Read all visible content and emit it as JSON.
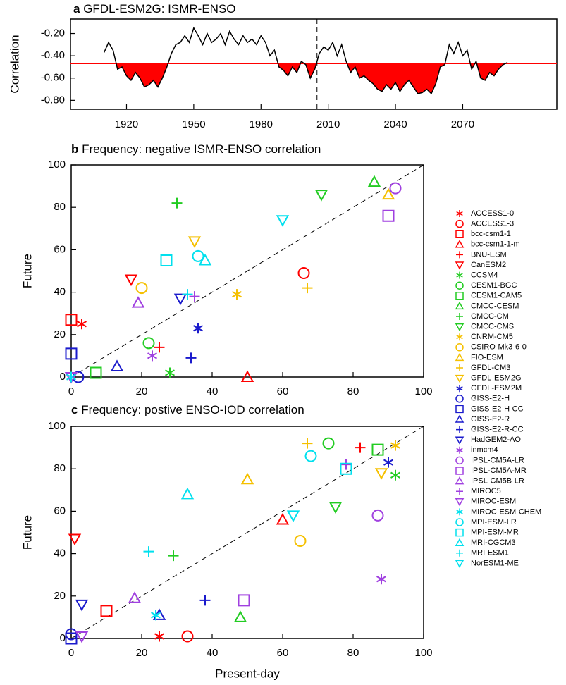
{
  "chart_data": [
    {
      "type": "line",
      "panel_label": "a",
      "title": "GFDL-ESM2G: ISMR-ENSO",
      "ylabel": "Correlation",
      "x": [
        1910,
        1912,
        1914,
        1916,
        1918,
        1920,
        1922,
        1924,
        1926,
        1928,
        1930,
        1932,
        1934,
        1936,
        1938,
        1940,
        1942,
        1944,
        1946,
        1948,
        1950,
        1952,
        1954,
        1956,
        1958,
        1960,
        1962,
        1964,
        1966,
        1968,
        1970,
        1972,
        1974,
        1976,
        1978,
        1980,
        1982,
        1984,
        1986,
        1988,
        1990,
        1992,
        1994,
        1996,
        1998,
        2000,
        2002,
        2004,
        2006,
        2008,
        2010,
        2012,
        2014,
        2016,
        2018,
        2020,
        2022,
        2024,
        2026,
        2028,
        2030,
        2032,
        2034,
        2036,
        2038,
        2040,
        2042,
        2044,
        2046,
        2048,
        2050,
        2052,
        2054,
        2056,
        2058,
        2060,
        2062,
        2064,
        2066,
        2068,
        2070,
        2072,
        2074,
        2076,
        2078,
        2080,
        2082,
        2084,
        2086,
        2088,
        2090
      ],
      "values": [
        -0.37,
        -0.28,
        -0.35,
        -0.52,
        -0.5,
        -0.58,
        -0.62,
        -0.55,
        -0.6,
        -0.68,
        -0.66,
        -0.62,
        -0.68,
        -0.6,
        -0.5,
        -0.38,
        -0.3,
        -0.28,
        -0.22,
        -0.28,
        -0.15,
        -0.22,
        -0.3,
        -0.2,
        -0.28,
        -0.25,
        -0.2,
        -0.3,
        -0.18,
        -0.25,
        -0.3,
        -0.22,
        -0.28,
        -0.25,
        -0.3,
        -0.22,
        -0.28,
        -0.4,
        -0.35,
        -0.5,
        -0.53,
        -0.58,
        -0.5,
        -0.55,
        -0.45,
        -0.48,
        -0.6,
        -0.52,
        -0.38,
        -0.32,
        -0.35,
        -0.28,
        -0.4,
        -0.3,
        -0.45,
        -0.55,
        -0.5,
        -0.6,
        -0.58,
        -0.62,
        -0.65,
        -0.7,
        -0.72,
        -0.66,
        -0.7,
        -0.64,
        -0.72,
        -0.66,
        -0.62,
        -0.68,
        -0.74,
        -0.73,
        -0.7,
        -0.74,
        -0.65,
        -0.5,
        -0.48,
        -0.3,
        -0.38,
        -0.28,
        -0.4,
        -0.35,
        -0.52,
        -0.45,
        -0.6,
        -0.62,
        -0.55,
        -0.58,
        -0.52,
        -0.48,
        -0.46
      ],
      "color": "#000000",
      "fill_color": "#ff0000",
      "threshold": -0.47,
      "threshold_color": "#ff0000",
      "divider_x": 2005,
      "xlim": [
        1895,
        2112
      ],
      "xticks": [
        1920,
        1950,
        1980,
        2010,
        2040,
        2070
      ],
      "ylim": [
        -0.88,
        -0.07
      ],
      "yticks": [
        {
          "value": -0.2,
          "label": "-0.20"
        },
        {
          "value": -0.4,
          "label": "-0.40"
        },
        {
          "value": -0.6,
          "label": "-0.60"
        },
        {
          "value": -0.8,
          "label": "-0.80"
        }
      ]
    },
    {
      "type": "scatter",
      "panel_label": "b",
      "title": "Frequency: negative ISMR-ENSO correlation",
      "ylabel": "Future",
      "xlim": [
        0,
        100
      ],
      "ylim": [
        0,
        100
      ],
      "xticks": [
        0,
        20,
        40,
        60,
        80,
        100
      ],
      "yticks": [
        0,
        20,
        40,
        60,
        80,
        100
      ],
      "diagonal": true,
      "legend": "right",
      "series": [
        {
          "name": "ACCESS1-0",
          "color": "#ff0000",
          "marker": "asterisk",
          "x": [
            3
          ],
          "values": [
            25
          ]
        },
        {
          "name": "ACCESS1-3",
          "color": "#ff0000",
          "marker": "circle",
          "x": [
            66
          ],
          "values": [
            49
          ]
        },
        {
          "name": "bcc-csm1-1",
          "color": "#ff0000",
          "marker": "square",
          "x": [
            0
          ],
          "values": [
            27
          ]
        },
        {
          "name": "bcc-csm1-1-m",
          "color": "#ff0000",
          "marker": "triangle",
          "x": [
            50
          ],
          "values": [
            0
          ]
        },
        {
          "name": "BNU-ESM",
          "color": "#ff0000",
          "marker": "plus",
          "x": [
            25
          ],
          "values": [
            14
          ]
        },
        {
          "name": "CanESM2",
          "color": "#ff0000",
          "marker": "down",
          "x": [
            17
          ],
          "values": [
            46
          ]
        },
        {
          "name": "CCSM4",
          "color": "#22cc22",
          "marker": "asterisk",
          "x": [
            28
          ],
          "values": [
            2
          ]
        },
        {
          "name": "CESM1-BGC",
          "color": "#22cc22",
          "marker": "circle",
          "x": [
            22
          ],
          "values": [
            16
          ]
        },
        {
          "name": "CESM1-CAM5",
          "color": "#22cc22",
          "marker": "square",
          "x": [
            7
          ],
          "values": [
            2
          ]
        },
        {
          "name": "CMCC-CESM",
          "color": "#22cc22",
          "marker": "triangle",
          "x": [
            86
          ],
          "values": [
            92
          ]
        },
        {
          "name": "CMCC-CM",
          "color": "#22cc22",
          "marker": "plus",
          "x": [
            30
          ],
          "values": [
            82
          ]
        },
        {
          "name": "CMCC-CMS",
          "color": "#22cc22",
          "marker": "down",
          "x": [
            71
          ],
          "values": [
            86
          ]
        },
        {
          "name": "CNRM-CM5",
          "color": "#f5c000",
          "marker": "asterisk",
          "x": [
            47
          ],
          "values": [
            39
          ]
        },
        {
          "name": "CSIRO-Mk3-6-0",
          "color": "#f5c000",
          "marker": "circle",
          "x": [
            20
          ],
          "values": [
            42
          ]
        },
        {
          "name": "FIO-ESM",
          "color": "#f5c000",
          "marker": "triangle",
          "x": [
            90
          ],
          "values": [
            86
          ]
        },
        {
          "name": "GFDL-CM3",
          "color": "#f5c000",
          "marker": "plus",
          "x": [
            67
          ],
          "values": [
            42
          ]
        },
        {
          "name": "GFDL-ESM2G",
          "color": "#f5c000",
          "marker": "down",
          "x": [
            35
          ],
          "values": [
            64
          ]
        },
        {
          "name": "GFDL-ESM2M",
          "color": "#1a1acc",
          "marker": "asterisk",
          "x": [
            36
          ],
          "values": [
            23
          ]
        },
        {
          "name": "GISS-E2-H",
          "color": "#1a1acc",
          "marker": "circle",
          "x": [
            2
          ],
          "values": [
            0
          ]
        },
        {
          "name": "GISS-E2-H-CC",
          "color": "#1a1acc",
          "marker": "square",
          "x": [
            0
          ],
          "values": [
            11
          ]
        },
        {
          "name": "GISS-E2-R",
          "color": "#1a1acc",
          "marker": "triangle",
          "x": [
            13
          ],
          "values": [
            5
          ]
        },
        {
          "name": "GISS-E2-R-CC",
          "color": "#1a1acc",
          "marker": "plus",
          "x": [
            34
          ],
          "values": [
            9
          ]
        },
        {
          "name": "HadGEM2-AO",
          "color": "#1a1acc",
          "marker": "down",
          "x": [
            31
          ],
          "values": [
            37
          ]
        },
        {
          "name": "inmcm4",
          "color": "#a040e0",
          "marker": "asterisk",
          "x": [
            23
          ],
          "values": [
            10
          ]
        },
        {
          "name": "IPSL-CM5A-LR",
          "color": "#a040e0",
          "marker": "circle",
          "x": [
            92
          ],
          "values": [
            89
          ]
        },
        {
          "name": "IPSL-CM5A-MR",
          "color": "#a040e0",
          "marker": "square",
          "x": [
            90
          ],
          "values": [
            76
          ]
        },
        {
          "name": "IPSL-CM5B-LR",
          "color": "#a040e0",
          "marker": "triangle",
          "x": [
            19
          ],
          "values": [
            35
          ]
        },
        {
          "name": "MIROC5",
          "color": "#a040e0",
          "marker": "plus",
          "x": [
            35
          ],
          "values": [
            38
          ]
        },
        {
          "name": "MIROC-ESM",
          "color": "#a040e0",
          "marker": "down",
          "x": [
            0
          ],
          "values": [
            0
          ]
        },
        {
          "name": "MIROC-ESM-CHEM",
          "color": "#00e0ee",
          "marker": "asterisk",
          "x": [
            0
          ],
          "values": [
            0
          ]
        },
        {
          "name": "MPI-ESM-LR",
          "color": "#00e0ee",
          "marker": "circle",
          "x": [
            36
          ],
          "values": [
            57
          ]
        },
        {
          "name": "MPI-ESM-MR",
          "color": "#00e0ee",
          "marker": "square",
          "x": [
            27
          ],
          "values": [
            55
          ]
        },
        {
          "name": "MRI-CGCM3",
          "color": "#00e0ee",
          "marker": "triangle",
          "x": [
            38
          ],
          "values": [
            55
          ]
        },
        {
          "name": "MRI-ESM1",
          "color": "#00e0ee",
          "marker": "plus",
          "x": [
            33
          ],
          "values": [
            39
          ]
        },
        {
          "name": "NorESM1-ME",
          "color": "#00e0ee",
          "marker": "down",
          "x": [
            60
          ],
          "values": [
            74
          ]
        }
      ]
    },
    {
      "type": "scatter",
      "panel_label": "c",
      "title": "Frequency: postive ENSO-IOD correlation",
      "xlabel": "Present-day",
      "ylabel": "Future",
      "xlim": [
        0,
        100
      ],
      "ylim": [
        0,
        100
      ],
      "xticks": [
        0,
        20,
        40,
        60,
        80,
        100
      ],
      "yticks": [
        0,
        20,
        40,
        60,
        80,
        100
      ],
      "diagonal": true,
      "series": [
        {
          "x": [
            25
          ],
          "values": [
            1
          ]
        },
        {
          "x": [
            33
          ],
          "values": [
            1
          ]
        },
        {
          "x": [
            10
          ],
          "values": [
            13
          ]
        },
        {
          "x": [
            60
          ],
          "values": [
            56
          ]
        },
        {
          "x": [
            82
          ],
          "values": [
            90
          ]
        },
        {
          "x": [
            1
          ],
          "values": [
            47
          ]
        },
        {
          "x": [
            92
          ],
          "values": [
            77
          ]
        },
        {
          "x": [
            73
          ],
          "values": [
            92
          ]
        },
        {
          "x": [
            87
          ],
          "values": [
            89
          ]
        },
        {
          "x": [
            48
          ],
          "values": [
            10
          ]
        },
        {
          "x": [
            29
          ],
          "values": [
            39
          ]
        },
        {
          "x": [
            75
          ],
          "values": [
            62
          ]
        },
        {
          "x": [
            92
          ],
          "values": [
            91
          ]
        },
        {
          "x": [
            65
          ],
          "values": [
            46
          ]
        },
        {
          "x": [
            50
          ],
          "values": [
            75
          ]
        },
        {
          "x": [
            67
          ],
          "values": [
            92
          ]
        },
        {
          "x": [
            88
          ],
          "values": [
            78
          ]
        },
        {
          "x": [
            90
          ],
          "values": [
            83
          ]
        },
        {
          "x": [
            0
          ],
          "values": [
            2
          ]
        },
        {
          "x": [
            0
          ],
          "values": [
            0
          ]
        },
        {
          "x": [
            25
          ],
          "values": [
            11
          ]
        },
        {
          "x": [
            38
          ],
          "values": [
            18
          ]
        },
        {
          "x": [
            3
          ],
          "values": [
            16
          ]
        },
        {
          "x": [
            88
          ],
          "values": [
            28
          ]
        },
        {
          "x": [
            87
          ],
          "values": [
            58
          ]
        },
        {
          "x": [
            49
          ],
          "values": [
            18
          ]
        },
        {
          "x": [
            18
          ],
          "values": [
            19
          ]
        },
        {
          "x": [
            78
          ],
          "values": [
            82
          ]
        },
        {
          "x": [
            3
          ],
          "values": [
            1
          ]
        },
        {
          "x": [
            24
          ],
          "values": [
            11
          ]
        },
        {
          "x": [
            68
          ],
          "values": [
            86
          ]
        },
        {
          "x": [
            78
          ],
          "values": [
            80
          ]
        },
        {
          "x": [
            33
          ],
          "values": [
            68
          ]
        },
        {
          "x": [
            22
          ],
          "values": [
            41
          ]
        },
        {
          "x": [
            63
          ],
          "values": [
            58
          ]
        }
      ]
    }
  ]
}
